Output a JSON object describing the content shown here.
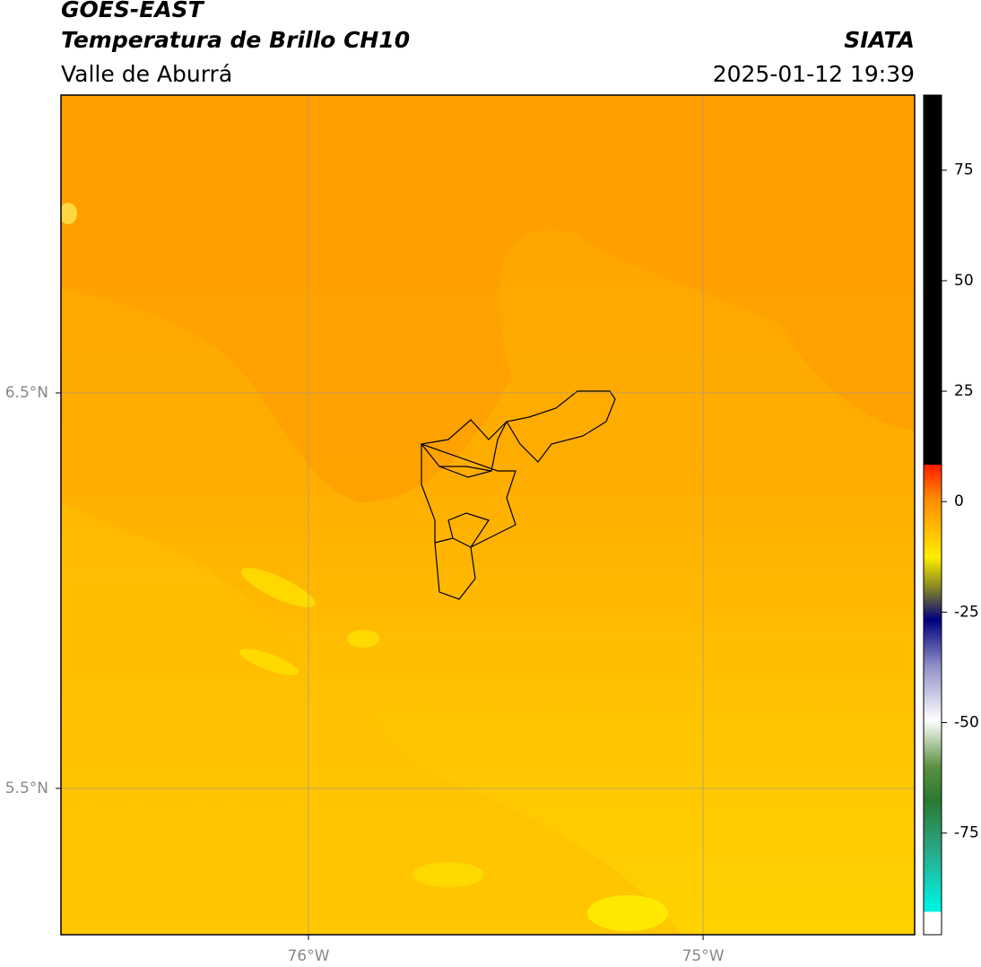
{
  "header": {
    "title": "GOES-EAST",
    "subtitle": "Temperatura de Brillo CH10",
    "source": "SIATA",
    "region": "Valle de Aburrá",
    "datetime": "2025-01-12 19:39"
  },
  "map": {
    "xlim": [
      -76.627,
      -74.464
    ],
    "ylim": [
      5.13,
      7.253
    ],
    "xticks": [
      {
        "value": -76,
        "label": "76°W"
      },
      {
        "value": -75,
        "label": "75°W"
      }
    ],
    "yticks": [
      {
        "value": 6.5,
        "label": "6.5°N"
      },
      {
        "value": 5.5,
        "label": "5.5°N"
      }
    ],
    "grid": true
  },
  "colorbar": {
    "lim": [
      -98,
      92
    ],
    "ticks": [
      75,
      50,
      25,
      0,
      -25,
      -50,
      -75
    ]
  }
}
